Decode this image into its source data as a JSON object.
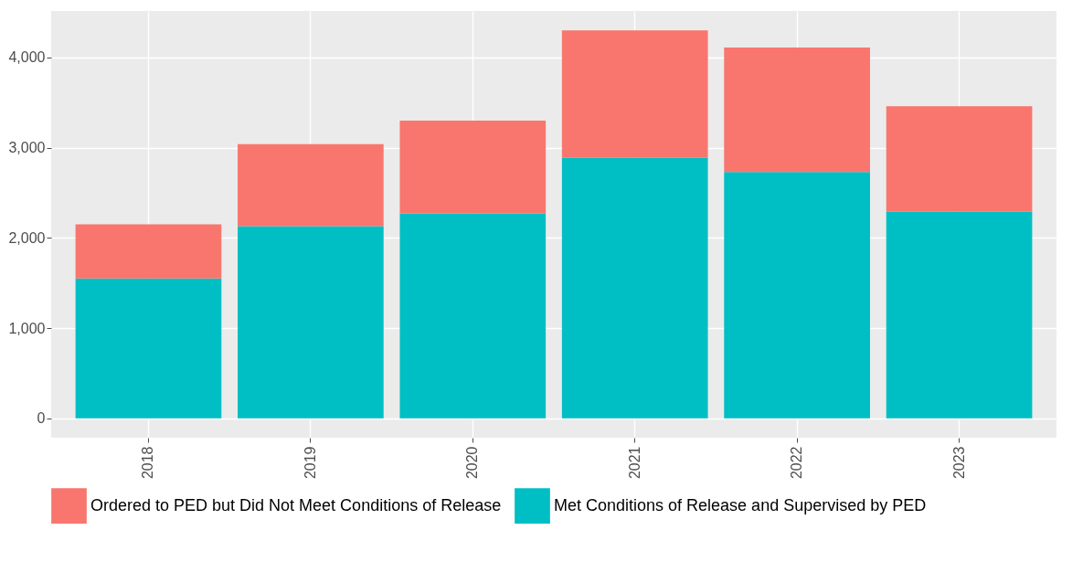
{
  "chart_data": {
    "type": "bar",
    "stacked": true,
    "categories": [
      "2018",
      "2019",
      "2020",
      "2021",
      "2022",
      "2023"
    ],
    "series": [
      {
        "name": "Met Conditions of Release and Supervised by PED",
        "color": "#00bfc4",
        "values": [
          1550,
          2130,
          2270,
          2890,
          2730,
          2290
        ]
      },
      {
        "name": "Ordered to PED but Did Not Meet Conditions of Release",
        "color": "#f8766d",
        "values": [
          600,
          910,
          1030,
          1410,
          1380,
          1170
        ]
      }
    ],
    "ylim": [
      -215,
      4515
    ],
    "yticks": [
      {
        "value": 0,
        "label": "0"
      },
      {
        "value": 1000,
        "label": "1,000"
      },
      {
        "value": 2000,
        "label": "2,000"
      },
      {
        "value": 3000,
        "label": "3,000"
      },
      {
        "value": 4000,
        "label": "4,000"
      }
    ],
    "grid": true,
    "legend": "bottom"
  }
}
